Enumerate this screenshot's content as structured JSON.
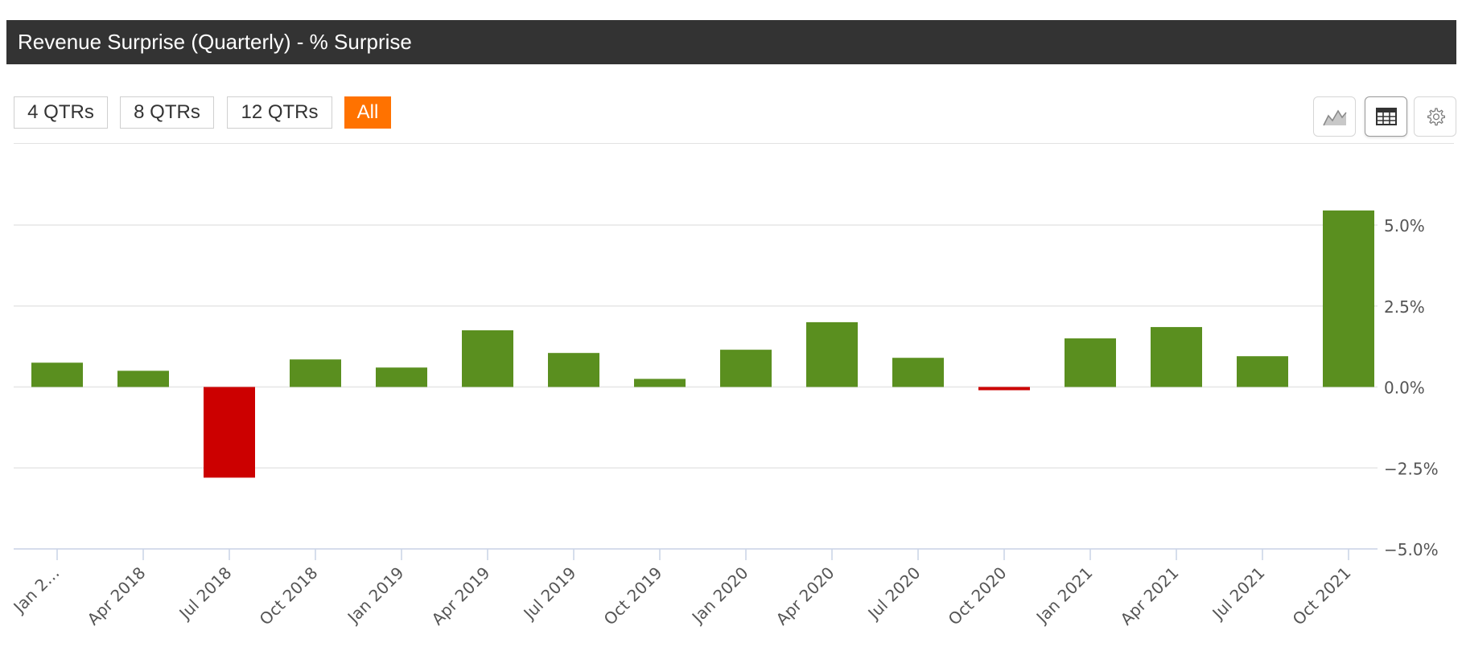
{
  "header": {
    "title": "Revenue Surprise (Quarterly) - % Surprise"
  },
  "range_buttons": [
    {
      "label": "4 QTRs",
      "active": false
    },
    {
      "label": "8 QTRs",
      "active": false
    },
    {
      "label": "12 QTRs",
      "active": false
    },
    {
      "label": "All",
      "active": true
    }
  ],
  "toolbar": {
    "icons": [
      "area-chart-icon",
      "table-icon",
      "settings-gear-icon"
    ]
  },
  "colors": {
    "positive": "#5a8f1f",
    "negative": "#cc0000",
    "active_button": "#ff7200",
    "title_bar": "#333333"
  },
  "chart_data": {
    "type": "bar",
    "title": "Revenue Surprise (Quarterly) - % Surprise",
    "categories": [
      "Jan 2…",
      "Apr 2018",
      "Jul 2018",
      "Oct 2018",
      "Jan 2019",
      "Apr 2019",
      "Jul 2019",
      "Oct 2019",
      "Jan 2020",
      "Apr 2020",
      "Jul 2020",
      "Oct 2020",
      "Jan 2021",
      "Apr 2021",
      "Jul 2021",
      "Oct 2021"
    ],
    "values": [
      0.75,
      0.5,
      -2.8,
      0.85,
      0.6,
      1.75,
      1.05,
      0.25,
      1.15,
      2.0,
      0.9,
      -0.1,
      1.5,
      1.85,
      0.95,
      5.45
    ],
    "ylim": [
      -5,
      5
    ],
    "yticks": [
      5.0,
      2.5,
      0.0,
      -2.5,
      -5.0
    ],
    "ytick_labels": [
      "5.0%",
      "2.5%",
      "0.0%",
      "−2.5%",
      "−5.0%"
    ],
    "ylabel": "",
    "xlabel": "",
    "y_axis_side": "right",
    "grid": true
  }
}
